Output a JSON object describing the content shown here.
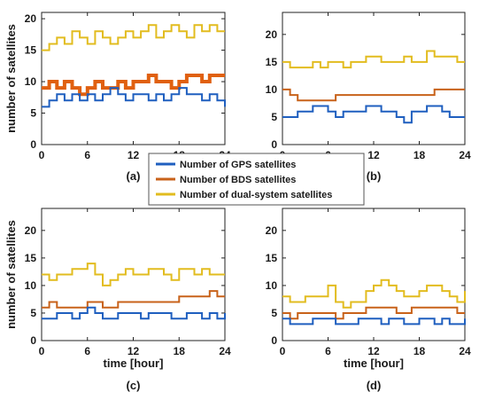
{
  "colors": {
    "gps": "#1f5fbf",
    "bds": "#c8621a",
    "dual": "#e2bc1f",
    "bds_fill": "#e06010"
  },
  "legend": {
    "items": [
      {
        "key": "gps",
        "label": "Number of GPS satellites"
      },
      {
        "key": "bds",
        "label": "Number of BDS satellites"
      },
      {
        "key": "dual",
        "label": "Number of dual-system satellites"
      }
    ]
  },
  "chart_data": [
    {
      "panel": "(a)",
      "type": "line",
      "xlabel": "",
      "ylabel": "number of satellites",
      "xlim": [
        0,
        24
      ],
      "ylim": [
        0,
        21
      ],
      "xticks": [
        0,
        6,
        12,
        18,
        24
      ],
      "yticks": [
        0,
        5,
        10,
        15,
        20
      ],
      "x": [
        0,
        1,
        2,
        3,
        4,
        5,
        6,
        7,
        8,
        9,
        10,
        11,
        12,
        13,
        14,
        15,
        16,
        17,
        18,
        19,
        20,
        21,
        22,
        23,
        24
      ],
      "series": [
        {
          "name": "Number of GPS satellites",
          "color_key": "gps",
          "values": [
            6,
            7,
            8,
            7,
            8,
            7,
            8,
            7,
            8,
            9,
            8,
            7,
            8,
            8,
            7,
            8,
            7,
            8,
            9,
            8,
            8,
            7,
            8,
            7,
            6
          ]
        },
        {
          "name": "Number of BDS satellites",
          "color_key": "bds",
          "values": [
            9,
            10,
            9,
            10,
            9,
            8,
            9,
            10,
            9,
            9,
            10,
            9,
            10,
            10,
            11,
            10,
            10,
            9,
            10,
            11,
            11,
            10,
            11,
            11,
            11
          ]
        },
        {
          "name": "Number of dual-system satellites",
          "color_key": "dual",
          "values": [
            15,
            16,
            17,
            16,
            18,
            17,
            16,
            18,
            17,
            16,
            17,
            18,
            17,
            18,
            19,
            17,
            18,
            19,
            18,
            17,
            19,
            18,
            19,
            18,
            18
          ]
        }
      ]
    },
    {
      "panel": "(b)",
      "type": "line",
      "xlabel": "",
      "ylabel": "",
      "xlim": [
        0,
        24
      ],
      "ylim": [
        0,
        24
      ],
      "xticks": [
        0,
        6,
        12,
        18,
        24
      ],
      "yticks": [
        0,
        5,
        10,
        15,
        20
      ],
      "x": [
        0,
        1,
        2,
        3,
        4,
        5,
        6,
        7,
        8,
        9,
        10,
        11,
        12,
        13,
        14,
        15,
        16,
        17,
        18,
        19,
        20,
        21,
        22,
        23,
        24
      ],
      "series": [
        {
          "name": "Number of GPS satellites",
          "color_key": "gps",
          "values": [
            5,
            5,
            6,
            6,
            7,
            7,
            6,
            5,
            6,
            6,
            6,
            7,
            7,
            6,
            6,
            5,
            4,
            6,
            6,
            7,
            7,
            6,
            5,
            5,
            5
          ]
        },
        {
          "name": "Number of BDS satellites",
          "color_key": "bds",
          "values": [
            10,
            9,
            8,
            8,
            8,
            8,
            8,
            9,
            9,
            9,
            9,
            9,
            9,
            9,
            9,
            9,
            9,
            9,
            9,
            9,
            10,
            10,
            10,
            10,
            10
          ]
        },
        {
          "name": "Number of dual-system satellites",
          "color_key": "dual",
          "values": [
            15,
            14,
            14,
            14,
            15,
            14,
            15,
            15,
            14,
            15,
            15,
            16,
            16,
            15,
            15,
            15,
            16,
            15,
            15,
            17,
            16,
            16,
            16,
            15,
            15
          ]
        }
      ]
    },
    {
      "panel": "(c)",
      "type": "line",
      "xlabel": "time [hour]",
      "ylabel": "number of satellites",
      "xlim": [
        0,
        24
      ],
      "ylim": [
        0,
        24
      ],
      "xticks": [
        0,
        6,
        12,
        18,
        24
      ],
      "yticks": [
        0,
        5,
        10,
        15,
        20
      ],
      "x": [
        0,
        1,
        2,
        3,
        4,
        5,
        6,
        7,
        8,
        9,
        10,
        11,
        12,
        13,
        14,
        15,
        16,
        17,
        18,
        19,
        20,
        21,
        22,
        23,
        24
      ],
      "series": [
        {
          "name": "Number of GPS satellites",
          "color_key": "gps",
          "values": [
            4,
            4,
            5,
            5,
            4,
            5,
            6,
            5,
            4,
            4,
            5,
            5,
            5,
            4,
            5,
            5,
            5,
            4,
            4,
            5,
            5,
            4,
            5,
            4,
            5
          ]
        },
        {
          "name": "Number of BDS satellites",
          "color_key": "bds",
          "values": [
            6,
            7,
            6,
            6,
            6,
            6,
            7,
            7,
            6,
            6,
            7,
            7,
            7,
            7,
            7,
            7,
            7,
            7,
            8,
            8,
            8,
            8,
            9,
            8,
            8
          ]
        },
        {
          "name": "Number of dual-system satellites",
          "color_key": "dual",
          "values": [
            12,
            11,
            12,
            12,
            13,
            13,
            14,
            12,
            10,
            11,
            12,
            13,
            12,
            12,
            13,
            13,
            12,
            11,
            13,
            13,
            12,
            13,
            12,
            12,
            12
          ]
        }
      ]
    },
    {
      "panel": "(d)",
      "type": "line",
      "xlabel": "time [hour]",
      "ylabel": "",
      "xlim": [
        0,
        24
      ],
      "ylim": [
        0,
        24
      ],
      "xticks": [
        0,
        6,
        12,
        18,
        24
      ],
      "yticks": [
        0,
        5,
        10,
        15,
        20
      ],
      "x": [
        0,
        1,
        2,
        3,
        4,
        5,
        6,
        7,
        8,
        9,
        10,
        11,
        12,
        13,
        14,
        15,
        16,
        17,
        18,
        19,
        20,
        21,
        22,
        23,
        24
      ],
      "series": [
        {
          "name": "Number of GPS satellites",
          "color_key": "gps",
          "values": [
            4,
            3,
            3,
            3,
            4,
            4,
            4,
            3,
            3,
            3,
            4,
            4,
            4,
            3,
            4,
            4,
            3,
            3,
            4,
            4,
            3,
            4,
            3,
            3,
            4
          ]
        },
        {
          "name": "Number of BDS satellites",
          "color_key": "bds",
          "values": [
            5,
            4,
            5,
            5,
            5,
            5,
            5,
            4,
            5,
            5,
            5,
            6,
            6,
            6,
            6,
            5,
            5,
            6,
            6,
            6,
            6,
            6,
            6,
            5,
            5
          ]
        },
        {
          "name": "Number of dual-system satellites",
          "color_key": "dual",
          "values": [
            8,
            7,
            7,
            8,
            8,
            8,
            10,
            7,
            6,
            7,
            7,
            9,
            10,
            11,
            10,
            9,
            8,
            8,
            9,
            10,
            10,
            9,
            8,
            7,
            9
          ]
        }
      ]
    }
  ]
}
